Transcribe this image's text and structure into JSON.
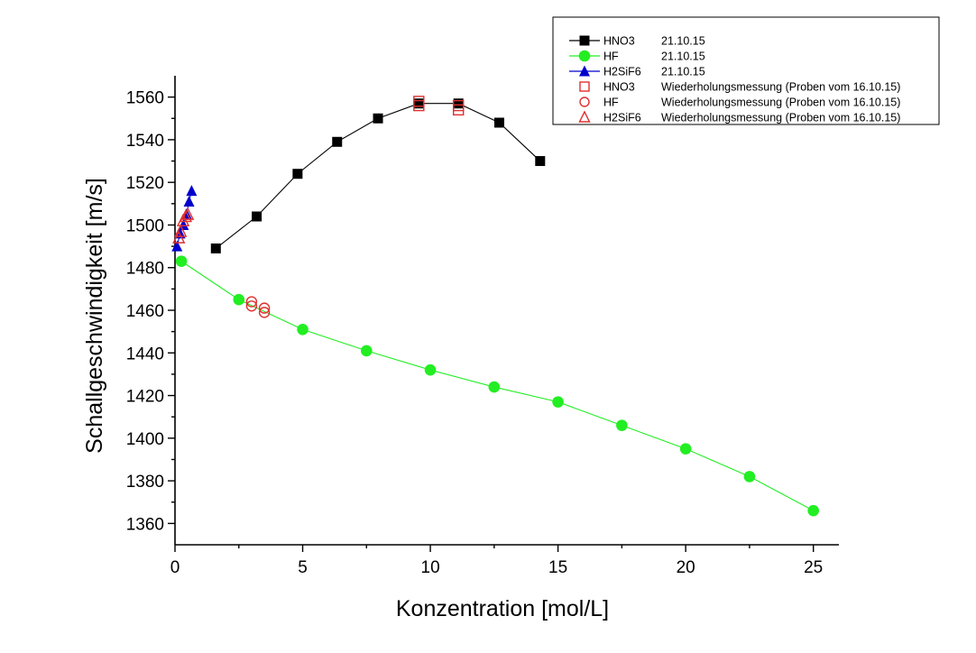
{
  "chart_data": {
    "type": "scatter",
    "title": "",
    "xlabel": "Konzentration [mol/L]",
    "ylabel": "Schallgeschwindigkeit [m/s]",
    "xlim": [
      0,
      26
    ],
    "ylim": [
      1350,
      1570
    ],
    "xticks": [
      0,
      5,
      10,
      15,
      20,
      25
    ],
    "yticks": [
      1360,
      1380,
      1400,
      1420,
      1440,
      1460,
      1480,
      1500,
      1520,
      1540,
      1560
    ],
    "grid": false,
    "legend_position": "top-right",
    "series": [
      {
        "name": "HNO3",
        "date": "21.10.15",
        "marker": "filled-square",
        "color": "#000000",
        "line": true,
        "x": [
          1.6,
          3.2,
          4.8,
          6.35,
          7.95,
          9.55,
          11.1,
          12.7,
          14.3
        ],
        "y": [
          1489,
          1504,
          1524,
          1539,
          1550,
          1557,
          1557,
          1548,
          1530
        ]
      },
      {
        "name": "HF",
        "date": "21.10.15",
        "marker": "filled-circle",
        "color": "#22ee22",
        "line": true,
        "x": [
          0.25,
          2.5,
          5.0,
          7.5,
          10.0,
          12.5,
          15.0,
          17.5,
          20.0,
          22.5,
          25.0
        ],
        "y": [
          1483,
          1465,
          1451,
          1441,
          1432,
          1424,
          1417,
          1406,
          1395,
          1382,
          1366
        ]
      },
      {
        "name": "H2SiF6",
        "date": "21.10.15",
        "marker": "filled-triangle",
        "color": "#0000cc",
        "line": true,
        "x": [
          0.08,
          0.2,
          0.33,
          0.45,
          0.55,
          0.65
        ],
        "y": [
          1490,
          1496,
          1500,
          1505,
          1511,
          1516
        ]
      },
      {
        "name": "HNO3",
        "date": "Wiederholungsmessung (Proben vom 16.10.15)",
        "marker": "open-square",
        "color": "#e03030",
        "line": false,
        "x": [
          9.55,
          9.55,
          11.1,
          11.1
        ],
        "y": [
          1558,
          1556,
          1556,
          1554
        ]
      },
      {
        "name": "HF",
        "date": "Wiederholungsmessung (Proben vom 16.10.15)",
        "marker": "open-circle",
        "color": "#e03030",
        "line": false,
        "x": [
          3.0,
          3.0,
          3.5,
          3.5
        ],
        "y": [
          1464,
          1462,
          1461,
          1459
        ]
      },
      {
        "name": "H2SiF6",
        "date": "Wiederholungsmessung (Proben vom 16.10.15)",
        "marker": "open-triangle",
        "color": "#e03030",
        "line": false,
        "x": [
          0.15,
          0.22,
          0.32,
          0.42,
          0.5
        ],
        "y": [
          1494,
          1497,
          1502,
          1504,
          1505
        ]
      }
    ]
  }
}
